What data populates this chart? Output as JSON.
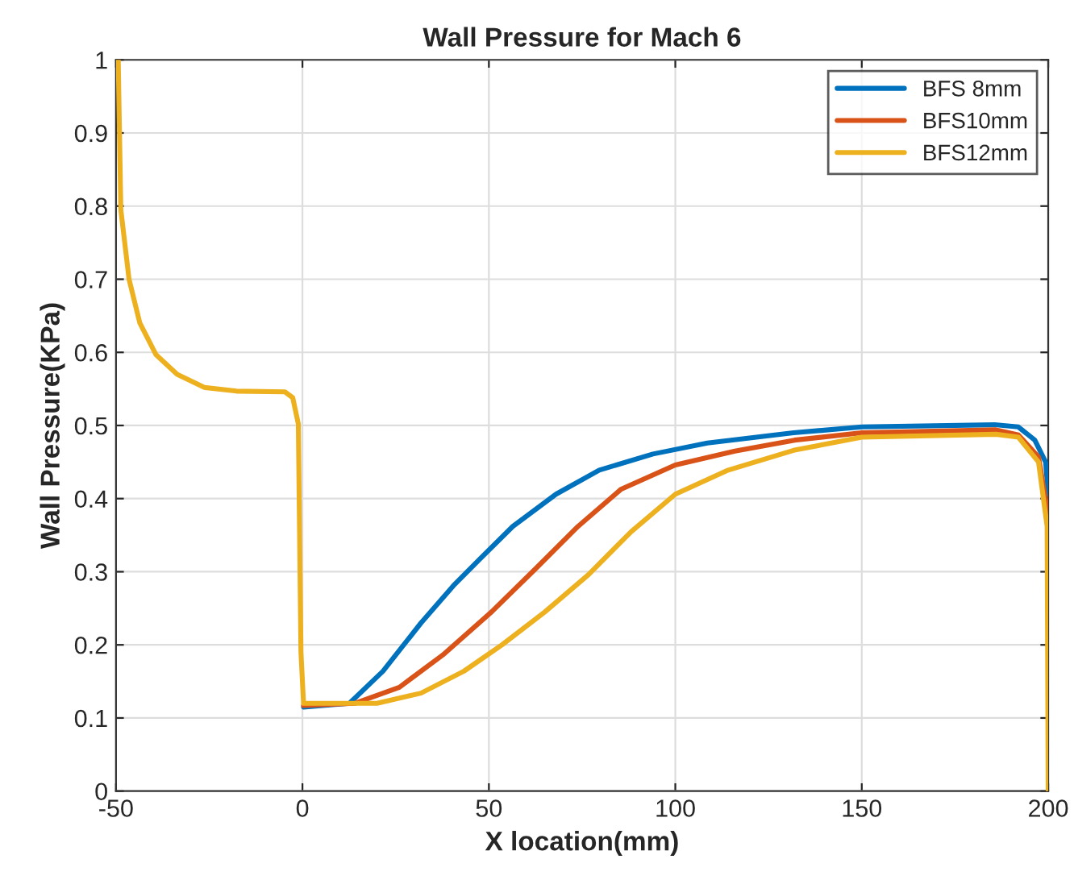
{
  "chart_data": {
    "type": "line",
    "title": "Wall Pressure for Mach 6",
    "xlabel": "X location(mm)",
    "ylabel": "Wall Pressure(KPa)",
    "xlim": [
      -50,
      200
    ],
    "ylim": [
      0,
      1
    ],
    "xticks": [
      -50,
      0,
      50,
      100,
      150,
      200
    ],
    "yticks": [
      0,
      0.1,
      0.2,
      0.3,
      0.4,
      0.5,
      0.6,
      0.7,
      0.8,
      0.9,
      1
    ],
    "grid": true,
    "legend": "top right",
    "marker": "none",
    "line_style": "solid",
    "series": [
      {
        "name": "BFS 8mm",
        "color": "#0072bd",
        "x": [
          0.3,
          12.6,
          21.6,
          31.8,
          40.5,
          47.7,
          56.4,
          68,
          79.6,
          94,
          108.6,
          131.7,
          150,
          185.6,
          192,
          196.4,
          199.3,
          200
        ],
        "values": [
          0.115,
          0.12,
          0.164,
          0.23,
          0.281,
          0.318,
          0.362,
          0.406,
          0.439,
          0.461,
          0.476,
          0.49,
          0.498,
          0.501,
          0.498,
          0.48,
          0.45,
          0.406
        ]
      },
      {
        "name": "BFS10mm",
        "color": "#d95319",
        "x": [
          0.3,
          14,
          26,
          37.6,
          50.7,
          62.3,
          73.9,
          85.5,
          100,
          116,
          132,
          150,
          186,
          192,
          197.4,
          200
        ],
        "values": [
          0.117,
          0.12,
          0.142,
          0.186,
          0.245,
          0.303,
          0.362,
          0.413,
          0.446,
          0.465,
          0.48,
          0.49,
          0.494,
          0.487,
          0.457,
          0.377
        ]
      },
      {
        "name": "BFS12mm",
        "color": "#edb120",
        "x": [
          -49.4,
          -48.7,
          -46.5,
          -43.6,
          -39.3,
          -33.6,
          -26.3,
          -17.7,
          -4.7,
          -2.6,
          -1.1,
          -0.4,
          0.3,
          20,
          31.8,
          43.3,
          53.5,
          65,
          76.7,
          88.2,
          100,
          114.2,
          131.7,
          150,
          186,
          192,
          197.4,
          199.7,
          200
        ],
        "values": [
          1.0,
          0.795,
          0.7,
          0.64,
          0.597,
          0.57,
          0.552,
          0.547,
          0.546,
          0.538,
          0.502,
          0.19,
          0.12,
          0.12,
          0.134,
          0.164,
          0.2,
          0.245,
          0.296,
          0.355,
          0.406,
          0.439,
          0.466,
          0.484,
          0.488,
          0.484,
          0.45,
          0.362,
          0.0
        ]
      }
    ]
  }
}
